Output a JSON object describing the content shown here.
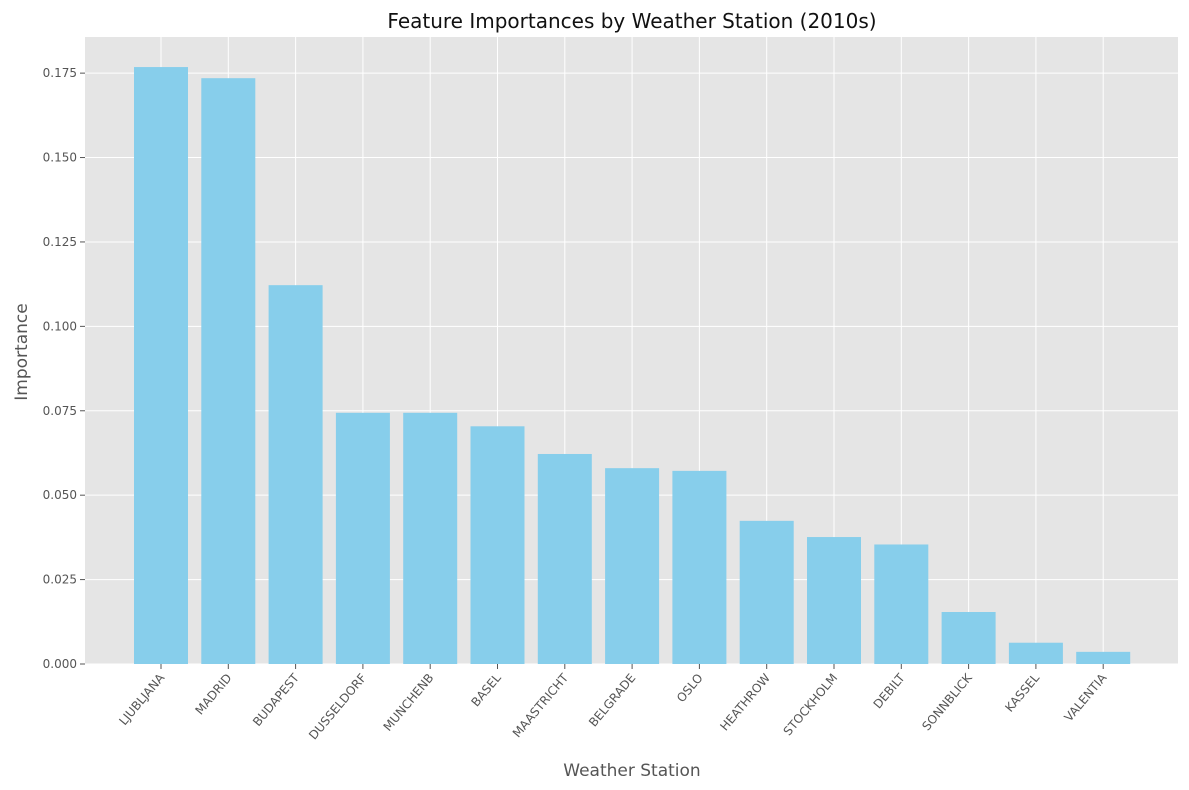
{
  "chart_data": {
    "type": "bar",
    "title": "Feature Importances by Weather Station (2010s)",
    "xlabel": "Weather Station",
    "ylabel": "Importance",
    "categories": [
      "LJUBLJANA",
      "MADRID",
      "BUDAPEST",
      "DUSSELDORF",
      "MUNCHENB",
      "BASEL",
      "MAASTRICHT",
      "BELGRADE",
      "OSLO",
      "HEATHROW",
      "STOCKHOLM",
      "DEBILT",
      "SONNBLICK",
      "KASSEL",
      "VALENTIA"
    ],
    "values": [
      0.1768,
      0.1735,
      0.1122,
      0.0744,
      0.0744,
      0.0704,
      0.0622,
      0.058,
      0.0572,
      0.0424,
      0.0376,
      0.0354,
      0.0154,
      0.0063,
      0.0036
    ],
    "ylim": [
      0,
      0.1857
    ],
    "yticks": [
      "0.000",
      "0.025",
      "0.050",
      "0.075",
      "0.100",
      "0.125",
      "0.150",
      "0.175"
    ],
    "grid": true,
    "colors": {
      "bar": "#87CEEB",
      "background": "#E5E5E5",
      "grid": "#FFFFFF"
    }
  }
}
